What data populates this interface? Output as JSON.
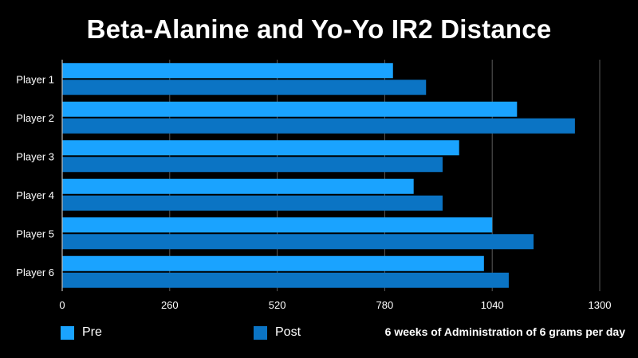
{
  "chart_data": {
    "type": "bar",
    "orientation": "horizontal",
    "title": "Beta-Alanine and Yo-Yo IR2 Distance",
    "categories": [
      "Player 1",
      "Player 2",
      "Player 3",
      "Player 4",
      "Player 5",
      "Player 6"
    ],
    "series": [
      {
        "name": "Pre",
        "color": "#1aa3ff",
        "values": [
          800,
          1100,
          960,
          850,
          1040,
          1020
        ]
      },
      {
        "name": "Post",
        "color": "#0b74c4",
        "values": [
          880,
          1240,
          920,
          920,
          1140,
          1080
        ]
      }
    ],
    "xlim": [
      0,
      1300
    ],
    "xticks": [
      0,
      260,
      520,
      780,
      1040,
      1300
    ],
    "grid": true,
    "legend_position": "bottom",
    "annotation": "6 weeks of Administration of 6 grams per day"
  }
}
